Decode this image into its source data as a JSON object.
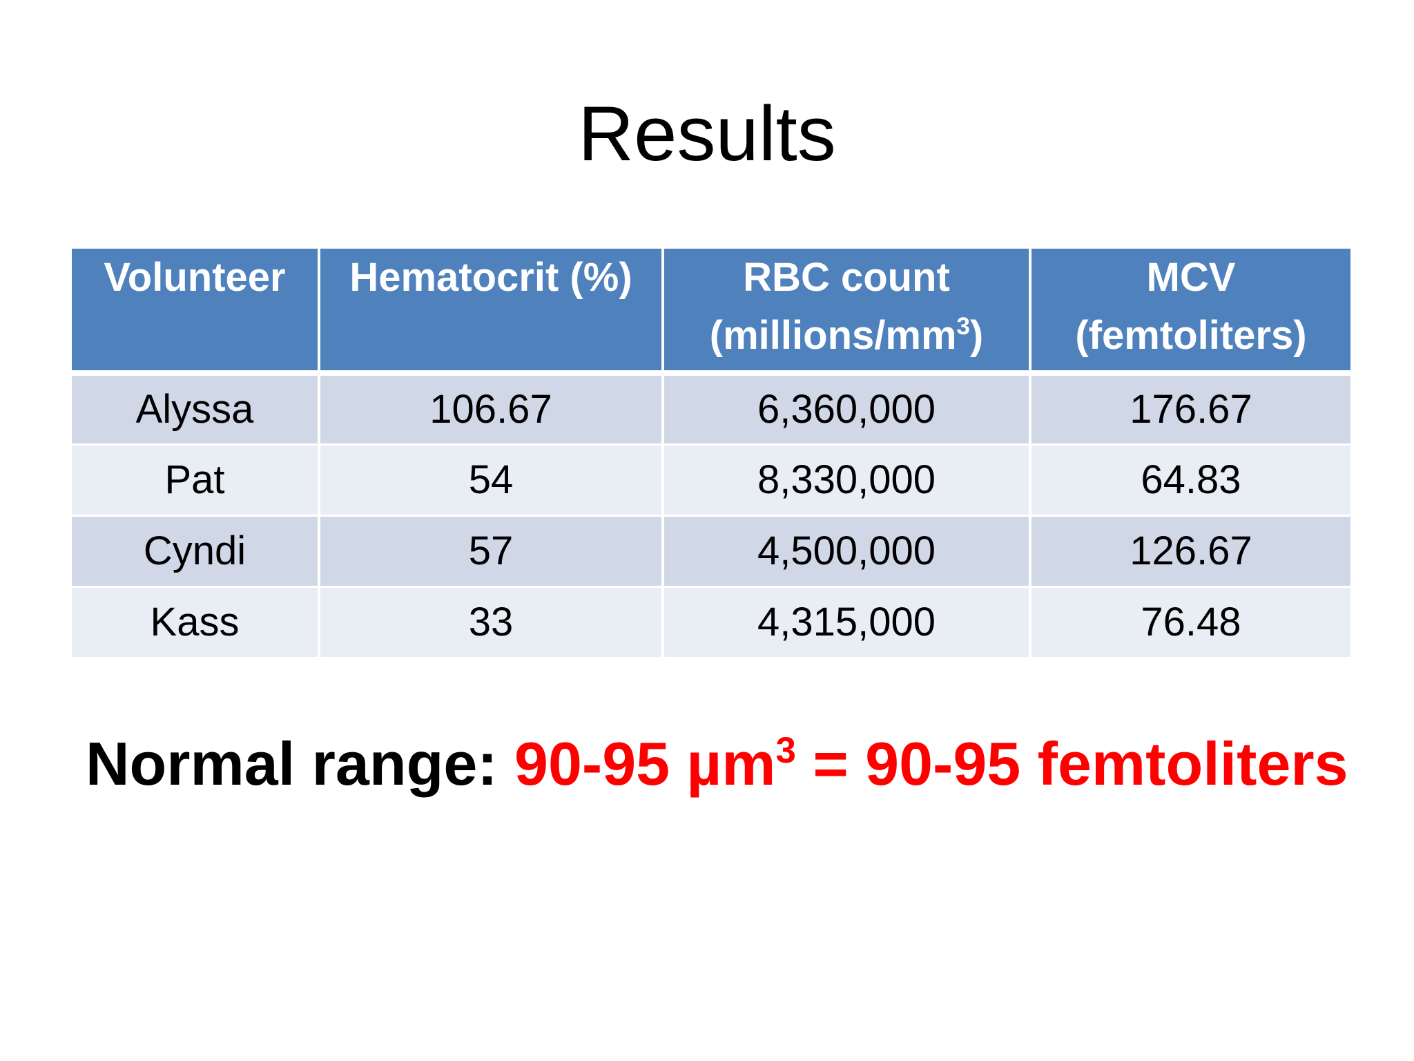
{
  "slide": {
    "title": "Results"
  },
  "table": {
    "headers": [
      {
        "line1": "Volunteer",
        "line2": "",
        "sup": ""
      },
      {
        "line1": "Hematocrit (%)",
        "line2": "",
        "sup": ""
      },
      {
        "line1": "RBC count",
        "line2_pre": "(millions/mm",
        "sup": "3",
        "line2_post": ")"
      },
      {
        "line1": "MCV",
        "line2": "(femtoliters)",
        "sup": ""
      }
    ],
    "rows": [
      [
        "Alyssa",
        "106.67",
        "6,360,000",
        "176.67"
      ],
      [
        "Pat",
        "54",
        "8,330,000",
        "64.83"
      ],
      [
        "Cyndi",
        "57",
        "4,500,000",
        "126.67"
      ],
      [
        "Kass",
        "33",
        "4,315,000",
        "76.48"
      ]
    ]
  },
  "normal_range": {
    "label": "Normal range: ",
    "value_pre": "90-95 µm",
    "value_sup": "3",
    "value_post": " = 90-95 femtoliters"
  },
  "colors": {
    "header_bg": "#4f81bd",
    "row_odd_bg": "#d0d8e8",
    "row_even_bg": "#e9edf4",
    "highlight_text": "#ff0000"
  }
}
